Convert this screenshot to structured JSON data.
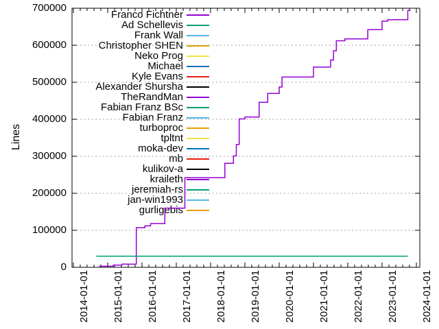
{
  "chart_data": {
    "type": "line",
    "line_style": "step-after",
    "title": "",
    "xlabel": "",
    "ylabel": "Lines",
    "ylim": [
      0,
      700000
    ],
    "yticks": [
      0,
      100000,
      200000,
      300000,
      400000,
      500000,
      600000,
      700000
    ],
    "xticks": [
      "2014-01-01",
      "2015-01-01",
      "2016-01-01",
      "2017-01-01",
      "2018-01-01",
      "2019-01-01",
      "2020-01-01",
      "2021-01-01",
      "2022-01-01",
      "2023-01-01",
      "2024-01-01"
    ],
    "grid": "horizontal dashed ytics only",
    "legend_position": "top-left inside",
    "series": [
      {
        "name": "Franco Fichtner",
        "color": "#9400D3",
        "points": [
          [
            "2014-10",
            3000
          ],
          [
            "2015-03",
            6000
          ],
          [
            "2015-06",
            8500
          ],
          [
            "2015-11",
            107000
          ],
          [
            "2016-02",
            112000
          ],
          [
            "2016-04",
            118000
          ],
          [
            "2016-09",
            160000
          ],
          [
            "2017-04",
            242000
          ],
          [
            "2018-06",
            281000
          ],
          [
            "2018-09",
            301000
          ],
          [
            "2018-10",
            332000
          ],
          [
            "2018-11",
            401000
          ],
          [
            "2019-01",
            406000
          ],
          [
            "2019-06",
            446000
          ],
          [
            "2019-09",
            470000
          ],
          [
            "2020-01",
            487000
          ],
          [
            "2020-02",
            514000
          ],
          [
            "2021-01",
            541000
          ],
          [
            "2021-07",
            560000
          ],
          [
            "2021-08",
            585000
          ],
          [
            "2021-09",
            612000
          ],
          [
            "2021-12",
            617000
          ],
          [
            "2022-08",
            642000
          ],
          [
            "2023-01",
            665000
          ],
          [
            "2023-03",
            669000
          ],
          [
            "2023-10",
            694000
          ],
          [
            "2023-11",
            694000
          ]
        ]
      },
      {
        "name": "Ad Schellevis",
        "color": "#009E73",
        "points": [
          [
            "2014-09",
            30000
          ],
          [
            "2023-10",
            30000
          ]
        ]
      },
      {
        "name": "Frank Wall",
        "color": "#56B4E9",
        "points": []
      },
      {
        "name": "Christopher SHEN",
        "color": "#E69F00",
        "points": []
      },
      {
        "name": "Neko Prog",
        "color": "#F0E442",
        "points": []
      },
      {
        "name": "Michael",
        "color": "#0072B2",
        "points": []
      },
      {
        "name": "Kyle Evans",
        "color": "#E51E10",
        "points": []
      },
      {
        "name": "Alexander Shursha",
        "color": "#000000",
        "points": []
      },
      {
        "name": "TheRandMan",
        "color": "#9400D3",
        "points": []
      },
      {
        "name": "Fabian Franz BSc",
        "color": "#009E73",
        "points": []
      },
      {
        "name": "Fabian Franz",
        "color": "#56B4E9",
        "points": []
      },
      {
        "name": "turboproc",
        "color": "#E69F00",
        "points": []
      },
      {
        "name": "tpltnt",
        "color": "#F0E442",
        "points": []
      },
      {
        "name": "moka-dev",
        "color": "#0072B2",
        "points": []
      },
      {
        "name": "mb",
        "color": "#E51E10",
        "points": []
      },
      {
        "name": "kulikov-a",
        "color": "#000000",
        "points": []
      },
      {
        "name": "kraileth",
        "color": "#9400D3",
        "points": []
      },
      {
        "name": "jeremiah-rs",
        "color": "#009E73",
        "points": []
      },
      {
        "name": "jan-win1993",
        "color": "#56B4E9",
        "points": []
      },
      {
        "name": "gurligebis",
        "color": "#E69F00",
        "points": []
      }
    ],
    "colors": {
      "background": "#ffffff",
      "border": "#000000",
      "grid": "#9e9e9e",
      "text": "#000000"
    }
  }
}
